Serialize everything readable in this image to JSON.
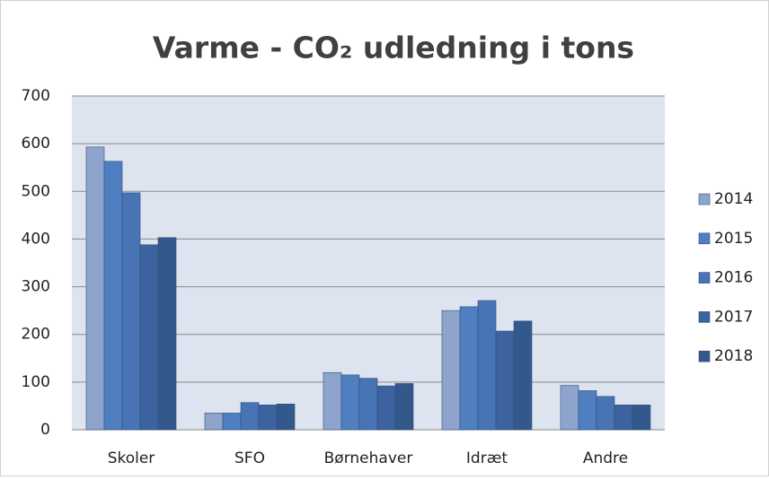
{
  "chart_data": {
    "type": "bar",
    "title": "Varme - CO₂ udledning i tons",
    "categories": [
      "Skoler",
      "SFO",
      "Børnehaver",
      "Idræt",
      "Andre"
    ],
    "series": [
      {
        "name": "2014",
        "color": "#8ea4cc",
        "values": [
          593,
          35,
          120,
          250,
          93
        ]
      },
      {
        "name": "2015",
        "color": "#4f7fc1",
        "values": [
          563,
          35,
          115,
          258,
          82
        ]
      },
      {
        "name": "2016",
        "color": "#4873b4",
        "values": [
          497,
          57,
          108,
          271,
          70
        ]
      },
      {
        "name": "2017",
        "color": "#3c639f",
        "values": [
          388,
          52,
          92,
          207,
          52
        ]
      },
      {
        "name": "2018",
        "color": "#33588c",
        "values": [
          403,
          54,
          97,
          228,
          52
        ]
      }
    ],
    "ylim": [
      0,
      700
    ],
    "yticks": [
      0,
      100,
      200,
      300,
      400,
      500,
      600,
      700
    ],
    "grid": true,
    "legend": "right"
  }
}
